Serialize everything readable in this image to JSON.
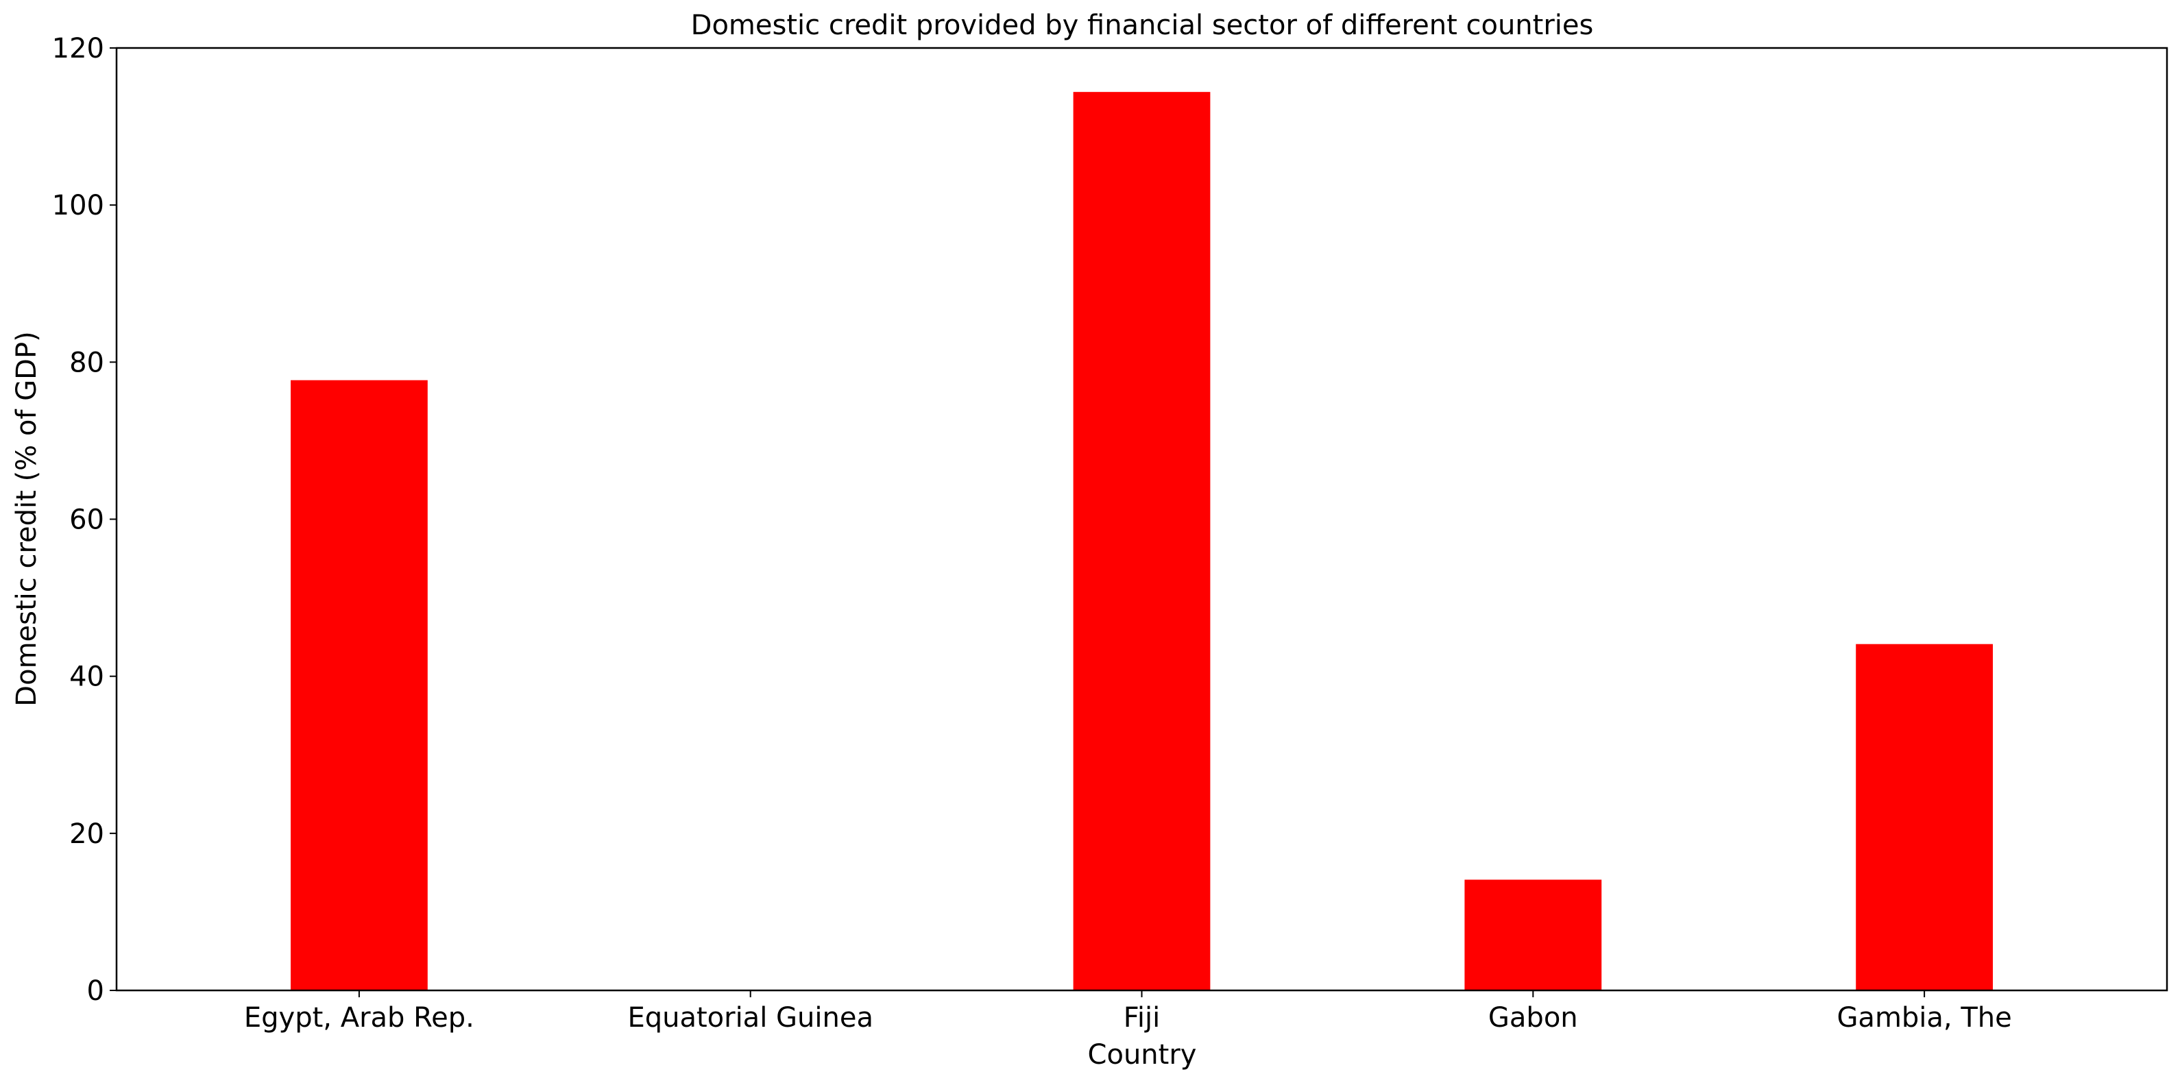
{
  "chart_data": {
    "type": "bar",
    "title": "Domestic credit provided by financial sector of different countries",
    "xlabel": "Country",
    "ylabel": "Domestic credit (% of GDP)",
    "categories": [
      "Egypt, Arab Rep.",
      "Equatorial Guinea",
      "Fiji",
      "Gabon",
      "Gambia, The"
    ],
    "values": [
      77.7,
      0,
      114.4,
      14.1,
      44.1
    ],
    "ylim": [
      0,
      120
    ],
    "yticks": [
      0,
      20,
      40,
      60,
      80,
      100,
      120
    ],
    "grid": false,
    "legend": "none",
    "bar_color": "#ff0000"
  }
}
